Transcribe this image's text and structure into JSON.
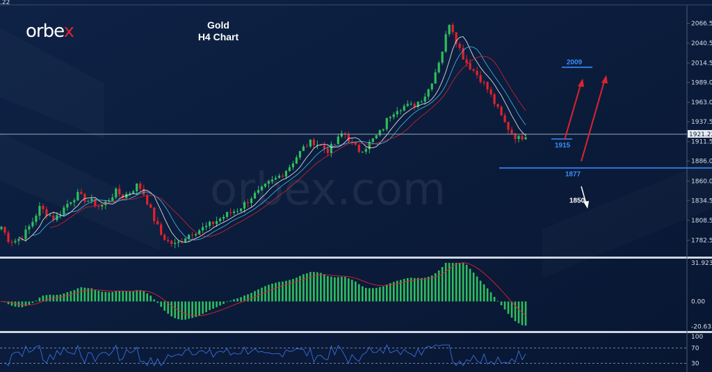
{
  "brand": {
    "name_prefix": "orbe",
    "name_x": "x"
  },
  "watermark": "orbex.com",
  "corner_label": ".22",
  "chart_data": {
    "type": "candlestick",
    "title": "Gold",
    "subtitle": "H4 Chart",
    "price_axis_ticks": [
      "2066.50",
      "2040.50",
      "2014.50",
      "1989.00",
      "1963.00",
      "1937.50",
      "1911.50",
      "1886.00",
      "1860.00",
      "1834.50",
      "1808.50",
      "1782.50"
    ],
    "current_price_label": "1921.22",
    "ylim": [
      1771,
      2077
    ],
    "close_path": [
      1800,
      1782,
      1782,
      1790,
      1805,
      1825,
      1818,
      1810,
      1822,
      1834,
      1842,
      1836,
      1832,
      1826,
      1834,
      1846,
      1840,
      1846,
      1856,
      1838,
      1812,
      1790,
      1780,
      1776,
      1786,
      1792,
      1796,
      1800,
      1806,
      1812,
      1818,
      1822,
      1830,
      1840,
      1846,
      1855,
      1862,
      1870,
      1880,
      1894,
      1906,
      1912,
      1906,
      1900,
      1910,
      1925,
      1910,
      1900,
      1905,
      1915,
      1925,
      1945,
      1955,
      1958,
      1958,
      1965,
      1975,
      2000,
      2030,
      2070,
      2040,
      2018,
      2006,
      1995,
      1980,
      1960,
      1940,
      1925,
      1915,
      1921
    ],
    "levels": [
      {
        "label": "2009",
        "value": 2009,
        "color": "#3a8dff"
      },
      {
        "label": "1915",
        "value": 1915,
        "color": "#3a8dff"
      },
      {
        "label": "1877",
        "value": 1877,
        "color": "#3a8dff"
      },
      {
        "label": "1850",
        "value": 1850,
        "color": "#ffffff"
      }
    ],
    "macd": {
      "axis_ticks": [
        "31.923",
        "0.00",
        "-20.633"
      ],
      "ylim": [
        -21,
        32
      ]
    },
    "rsi": {
      "axis_ticks": [
        "100",
        "70",
        "30"
      ],
      "levels": [
        70,
        30
      ],
      "ylim": [
        20,
        100
      ]
    }
  }
}
